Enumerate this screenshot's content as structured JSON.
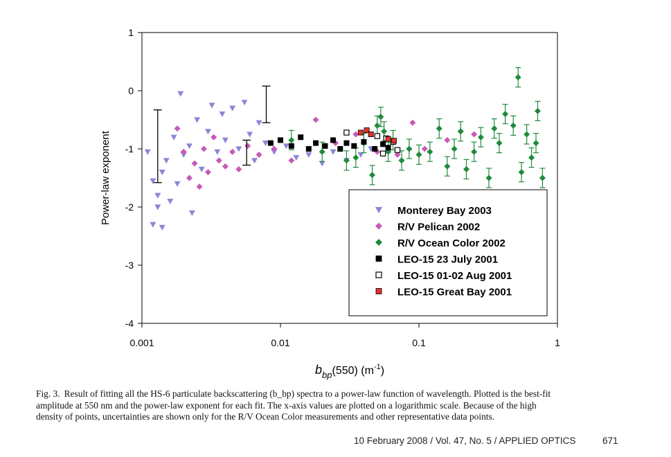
{
  "chart_data": {
    "type": "scatter",
    "x_scale": "log",
    "xlim": [
      0.001,
      1
    ],
    "ylim": [
      -4,
      1
    ],
    "x_ticks": [
      "0.001",
      "0.01",
      "0.1",
      "1"
    ],
    "y_ticks": [
      "-4",
      "-3",
      "-2",
      "-1",
      "0",
      "1"
    ],
    "xlabel": {
      "main": "b",
      "sub": "bp",
      "rest": "(550) (m",
      "sup": "-1",
      "close": ")"
    },
    "ylabel": "Power-law exponent",
    "legend_position": "lower-right",
    "colors": {
      "monterey": "#8b87d6",
      "pelican": "#c85ab7",
      "ocean_color": "#1e8a3c",
      "leo_july": "#000000",
      "leo_aug": "#ffffff",
      "leo_great_bay": "#e0332a"
    },
    "series": [
      {
        "name": "Monterey Bay 2003",
        "marker": "triangle-down",
        "color_key": "monterey",
        "points": [
          [
            0.0011,
            -1.05
          ],
          [
            0.0012,
            -1.55
          ],
          [
            0.0012,
            -2.3
          ],
          [
            0.0013,
            -1.8
          ],
          [
            0.0013,
            -2.0
          ],
          [
            0.0014,
            -1.4
          ],
          [
            0.0014,
            -2.35
          ],
          [
            0.0015,
            -1.2
          ],
          [
            0.0016,
            -1.9
          ],
          [
            0.0017,
            -0.8
          ],
          [
            0.0018,
            -1.6
          ],
          [
            0.0019,
            -0.05
          ],
          [
            0.002,
            -1.1
          ],
          [
            0.0022,
            -0.95
          ],
          [
            0.0023,
            -2.1
          ],
          [
            0.0025,
            -0.5
          ],
          [
            0.0027,
            -1.35
          ],
          [
            0.003,
            -0.7
          ],
          [
            0.0032,
            -0.25
          ],
          [
            0.0035,
            -1.05
          ],
          [
            0.0038,
            -0.4
          ],
          [
            0.004,
            -0.85
          ],
          [
            0.0045,
            -0.3
          ],
          [
            0.005,
            -1.0
          ],
          [
            0.0055,
            -0.2
          ],
          [
            0.006,
            -0.75
          ],
          [
            0.0065,
            -1.2
          ],
          [
            0.007,
            -0.55
          ],
          [
            0.0078,
            -0.9
          ],
          [
            0.009,
            -1.05
          ],
          [
            0.011,
            -0.95
          ],
          [
            0.013,
            -1.15
          ],
          [
            0.016,
            -1.1
          ],
          [
            0.02,
            -1.25
          ],
          [
            0.024,
            -1.05
          ],
          [
            0.03,
            -1.2
          ],
          [
            0.038,
            -1.1
          ],
          [
            0.045,
            -1.0
          ]
        ]
      },
      {
        "name": "R/V Pelican 2002",
        "marker": "diamond",
        "color_key": "pelican",
        "points": [
          [
            0.0018,
            -0.65
          ],
          [
            0.002,
            -1.05
          ],
          [
            0.0022,
            -1.5
          ],
          [
            0.0024,
            -1.25
          ],
          [
            0.0026,
            -1.65
          ],
          [
            0.0028,
            -1.0
          ],
          [
            0.003,
            -1.4
          ],
          [
            0.0033,
            -0.8
          ],
          [
            0.0036,
            -1.2
          ],
          [
            0.004,
            -1.3
          ],
          [
            0.0045,
            -1.05
          ],
          [
            0.005,
            -1.35
          ],
          [
            0.0058,
            -0.95
          ],
          [
            0.007,
            -1.1
          ],
          [
            0.009,
            -1.0
          ],
          [
            0.012,
            -1.2
          ],
          [
            0.018,
            -0.5
          ],
          [
            0.025,
            -0.9
          ],
          [
            0.035,
            -0.75
          ],
          [
            0.05,
            -1.05
          ],
          [
            0.07,
            -1.1
          ],
          [
            0.09,
            -0.55
          ],
          [
            0.11,
            -1.0
          ],
          [
            0.16,
            -0.85
          ],
          [
            0.2,
            -0.7
          ],
          [
            0.25,
            -0.75
          ]
        ]
      },
      {
        "name": "R/V Ocean Color 2002",
        "marker": "diamond",
        "color_key": "ocean_color",
        "points": [
          [
            0.012,
            -0.85
          ],
          [
            0.02,
            -1.05
          ],
          [
            0.03,
            -1.2
          ],
          [
            0.035,
            -1.15
          ],
          [
            0.04,
            -0.9
          ],
          [
            0.046,
            -1.45
          ],
          [
            0.05,
            -0.6
          ],
          [
            0.053,
            -0.45
          ],
          [
            0.056,
            -0.7
          ],
          [
            0.06,
            -1.05
          ],
          [
            0.065,
            -0.85
          ],
          [
            0.075,
            -1.2
          ],
          [
            0.085,
            -1.0
          ],
          [
            0.1,
            -1.1
          ],
          [
            0.12,
            -1.05
          ],
          [
            0.14,
            -0.65
          ],
          [
            0.16,
            -1.3
          ],
          [
            0.18,
            -1.0
          ],
          [
            0.2,
            -0.7
          ],
          [
            0.22,
            -1.35
          ],
          [
            0.25,
            -1.05
          ],
          [
            0.28,
            -0.8
          ],
          [
            0.32,
            -1.5
          ],
          [
            0.35,
            -0.65
          ],
          [
            0.38,
            -0.9
          ],
          [
            0.42,
            -0.4
          ],
          [
            0.48,
            -0.6
          ],
          [
            0.52,
            0.23
          ],
          [
            0.55,
            -1.4
          ],
          [
            0.6,
            -0.75
          ],
          [
            0.65,
            -1.15
          ],
          [
            0.7,
            -0.9
          ],
          [
            0.72,
            -0.35
          ],
          [
            0.78,
            -1.5
          ]
        ]
      },
      {
        "name": "LEO-15 23 July 2001",
        "marker": "square",
        "color_key": "leo_july",
        "points": [
          [
            0.0085,
            -0.9
          ],
          [
            0.01,
            -0.85
          ],
          [
            0.012,
            -0.95
          ],
          [
            0.014,
            -0.8
          ],
          [
            0.016,
            -1.0
          ],
          [
            0.018,
            -0.9
          ],
          [
            0.021,
            -0.95
          ],
          [
            0.024,
            -0.85
          ],
          [
            0.027,
            -1.0
          ],
          [
            0.03,
            -0.9
          ],
          [
            0.034,
            -0.95
          ],
          [
            0.04,
            -0.88
          ],
          [
            0.048,
            -1.0
          ],
          [
            0.055,
            -0.92
          ],
          [
            0.06,
            -0.98
          ]
        ]
      },
      {
        "name": "LEO-15 01-02 Aug 2001",
        "marker": "square-open",
        "color_key": "leo_aug",
        "points": [
          [
            0.03,
            -0.72
          ],
          [
            0.05,
            -0.78
          ],
          [
            0.055,
            -1.08
          ],
          [
            0.058,
            -0.82
          ],
          [
            0.065,
            -0.88
          ],
          [
            0.07,
            -1.02
          ]
        ]
      },
      {
        "name": "LEO-15 Great Bay 2001",
        "marker": "square",
        "color_key": "leo_great_bay",
        "points": [
          [
            0.038,
            -0.72
          ],
          [
            0.042,
            -0.68
          ],
          [
            0.045,
            -0.75
          ],
          [
            0.06,
            -0.83
          ],
          [
            0.066,
            -0.86
          ]
        ]
      }
    ],
    "representative_error_bars": [
      {
        "x": 0.0013,
        "y": -0.95,
        "low": -1.58,
        "high": -0.33
      },
      {
        "x": 0.0057,
        "y": -1.05,
        "low": -1.28,
        "high": -0.85
      },
      {
        "x": 0.0079,
        "y": -0.45,
        "low": -0.55,
        "high": 0.08
      }
    ]
  },
  "caption": {
    "label": "Fig. 3.",
    "line1": "Result of fitting all the HS-6 particulate backscattering (b_bp) spectra to a power-law function of wavelength. Plotted is the best-fit",
    "line2": "amplitude at 550 nm and the power-law exponent for each fit. The x-axis values are plotted on a logarithmic scale. Because of the high",
    "line3": "density of points, uncertainties are shown only for the R/V Ocean Color measurements and other representative data points."
  },
  "footer": {
    "journal": "10 February 2008 / Vol. 47, No. 5 / APPLIED OPTICS",
    "page": "671"
  }
}
